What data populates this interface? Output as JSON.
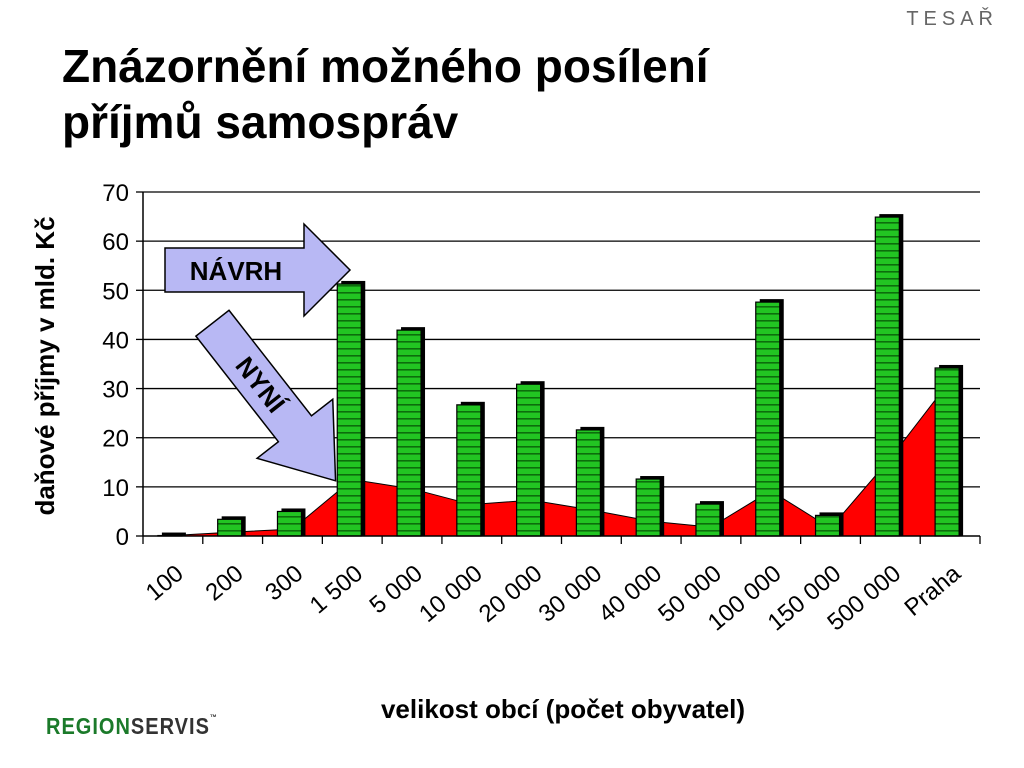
{
  "header": {
    "author": "TESAŘ",
    "title_line1": "Znázornění možného posílení",
    "title_line2": "příjmů samospráv"
  },
  "logo": {
    "part1": "REGION",
    "part2": "SERVIS",
    "mark": "™"
  },
  "annotations": {
    "proposal": "NÁVRH",
    "current": "NYNÍ"
  },
  "colors": {
    "bars": "#22c522",
    "area": "#ff0000",
    "arrow": "#b8b8f4",
    "grid": "#000000"
  },
  "chart_data": {
    "type": "bar",
    "title": "",
    "xlabel": "velikost obcí (počet obyvatel)",
    "ylabel": "daňové příjmy v mld. Kč",
    "ylim": [
      0,
      70
    ],
    "yticks": [
      0,
      10,
      20,
      30,
      40,
      50,
      60,
      70
    ],
    "grid": true,
    "categories": [
      "100",
      "200",
      "300",
      "1 500",
      "5 000",
      "10 000",
      "20 000",
      "30 000",
      "40 000",
      "50 000",
      "100 000",
      "150 000",
      "500 000",
      "Praha"
    ],
    "series": [
      {
        "name": "NÁVRH",
        "type": "bar",
        "values": [
          0.5,
          3.8,
          5.4,
          51.7,
          42.3,
          27.1,
          31.3,
          22.0,
          12.0,
          6.9,
          48.0,
          4.6,
          65.3,
          34.6
        ]
      },
      {
        "name": "NYNÍ",
        "type": "area",
        "values": [
          0.1,
          0.8,
          1.4,
          11.5,
          9.6,
          6.4,
          7.3,
          5.3,
          3.0,
          1.8,
          9.2,
          1.6,
          15.8,
          31.6
        ]
      }
    ]
  }
}
